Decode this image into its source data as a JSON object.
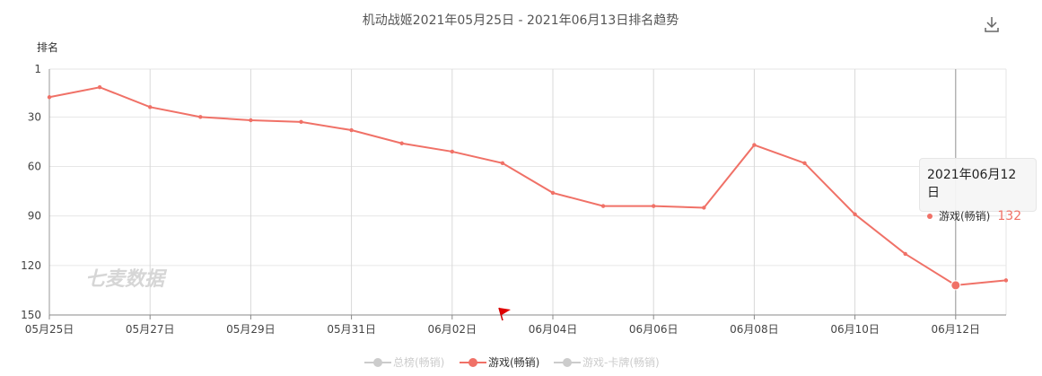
{
  "chart_data": {
    "type": "line",
    "title": "机动战姬2021年05月25日 - 2021年06月13日排名趋势",
    "ylabel": "排名",
    "y_inverted": true,
    "ylim": [
      1,
      150
    ],
    "yticks": [
      1,
      30,
      60,
      90,
      120,
      150
    ],
    "grid": true,
    "x": [
      "05月25日",
      "05月26日",
      "05月27日",
      "05月28日",
      "05月29日",
      "05月30日",
      "05月31日",
      "06月01日",
      "06月02日",
      "06月03日",
      "06月04日",
      "06月05日",
      "06月06日",
      "06月07日",
      "06月08日",
      "06月09日",
      "06月10日",
      "06月11日",
      "06月12日",
      "06月13日"
    ],
    "xtick_labels": [
      "05月25日",
      "05月27日",
      "05月29日",
      "05月31日",
      "06月02日",
      "06月04日",
      "06月06日",
      "06月08日",
      "06月10日",
      "06月12日"
    ],
    "series": [
      {
        "name": "游戏(畅销)",
        "color": "#f07167",
        "values": [
          18,
          12,
          24,
          30,
          32,
          33,
          38,
          46,
          51,
          58,
          76,
          84,
          84,
          85,
          47,
          58,
          89,
          113,
          132,
          129
        ]
      }
    ],
    "legend_placement": "bottom-center",
    "watermark": "七麦数据"
  },
  "legend": [
    {
      "label": "总榜(畅销)",
      "active": false,
      "color": "#cccccc"
    },
    {
      "label": "游戏(畅销)",
      "active": true,
      "color": "#f07167"
    },
    {
      "label": "游戏-卡牌(畅销)",
      "active": false,
      "color": "#cccccc"
    }
  ],
  "tooltip": {
    "title": "2021年06月12日",
    "series_name": "游戏(畅销)",
    "value": "132"
  },
  "icons": {
    "download": "download-icon",
    "flag": "flag-icon"
  }
}
